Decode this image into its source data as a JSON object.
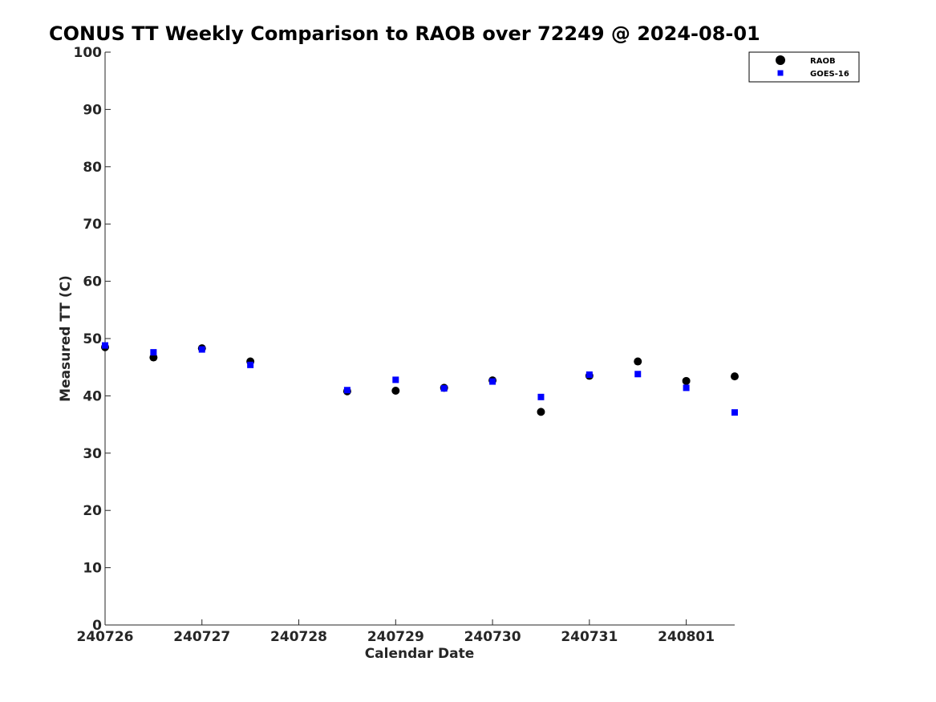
{
  "chart_data": {
    "type": "scatter",
    "title": "CONUS TT Weekly Comparison to RAOB over 72249 @ 2024-08-01",
    "xlabel": "Calendar Date",
    "ylabel": "Measured TT (C)",
    "x_ticks": [
      "240726",
      "240727",
      "240728",
      "240729",
      "240730",
      "240731",
      "240801"
    ],
    "x_range": [
      "2024-07-26 00:00",
      "2024-08-01 12:00"
    ],
    "ylim": [
      0,
      100
    ],
    "y_ticks": [
      0,
      10,
      20,
      30,
      40,
      50,
      60,
      70,
      80,
      90,
      100
    ],
    "grid": false,
    "legend_position": "top-right",
    "series": [
      {
        "name": "RAOB",
        "marker": "circle",
        "color": "#000000",
        "points": [
          {
            "x": "2024-07-26 00:00",
            "y": 48.5
          },
          {
            "x": "2024-07-26 12:00",
            "y": 46.7
          },
          {
            "x": "2024-07-27 00:00",
            "y": 48.3
          },
          {
            "x": "2024-07-27 12:00",
            "y": 46.0
          },
          {
            "x": "2024-07-28 12:00",
            "y": 40.8
          },
          {
            "x": "2024-07-29 00:00",
            "y": 40.9
          },
          {
            "x": "2024-07-29 12:00",
            "y": 41.4
          },
          {
            "x": "2024-07-30 00:00",
            "y": 42.7
          },
          {
            "x": "2024-07-30 12:00",
            "y": 37.2
          },
          {
            "x": "2024-07-31 00:00",
            "y": 43.5
          },
          {
            "x": "2024-07-31 12:00",
            "y": 46.0
          },
          {
            "x": "2024-08-01 00:00",
            "y": 42.6
          },
          {
            "x": "2024-08-01 12:00",
            "y": 43.4
          }
        ]
      },
      {
        "name": "GOES-16",
        "marker": "square",
        "color": "#0000ff",
        "points": [
          {
            "x": "2024-07-26 00:00",
            "y": 48.8
          },
          {
            "x": "2024-07-26 12:00",
            "y": 47.6
          },
          {
            "x": "2024-07-27 00:00",
            "y": 48.1
          },
          {
            "x": "2024-07-27 12:00",
            "y": 45.4
          },
          {
            "x": "2024-07-28 12:00",
            "y": 41.0
          },
          {
            "x": "2024-07-29 00:00",
            "y": 42.8
          },
          {
            "x": "2024-07-29 12:00",
            "y": 41.3
          },
          {
            "x": "2024-07-30 00:00",
            "y": 42.5
          },
          {
            "x": "2024-07-30 12:00",
            "y": 39.8
          },
          {
            "x": "2024-07-31 00:00",
            "y": 43.7
          },
          {
            "x": "2024-07-31 12:00",
            "y": 43.8
          },
          {
            "x": "2024-08-01 00:00",
            "y": 41.4
          },
          {
            "x": "2024-08-01 12:00",
            "y": 37.1
          }
        ]
      }
    ]
  }
}
